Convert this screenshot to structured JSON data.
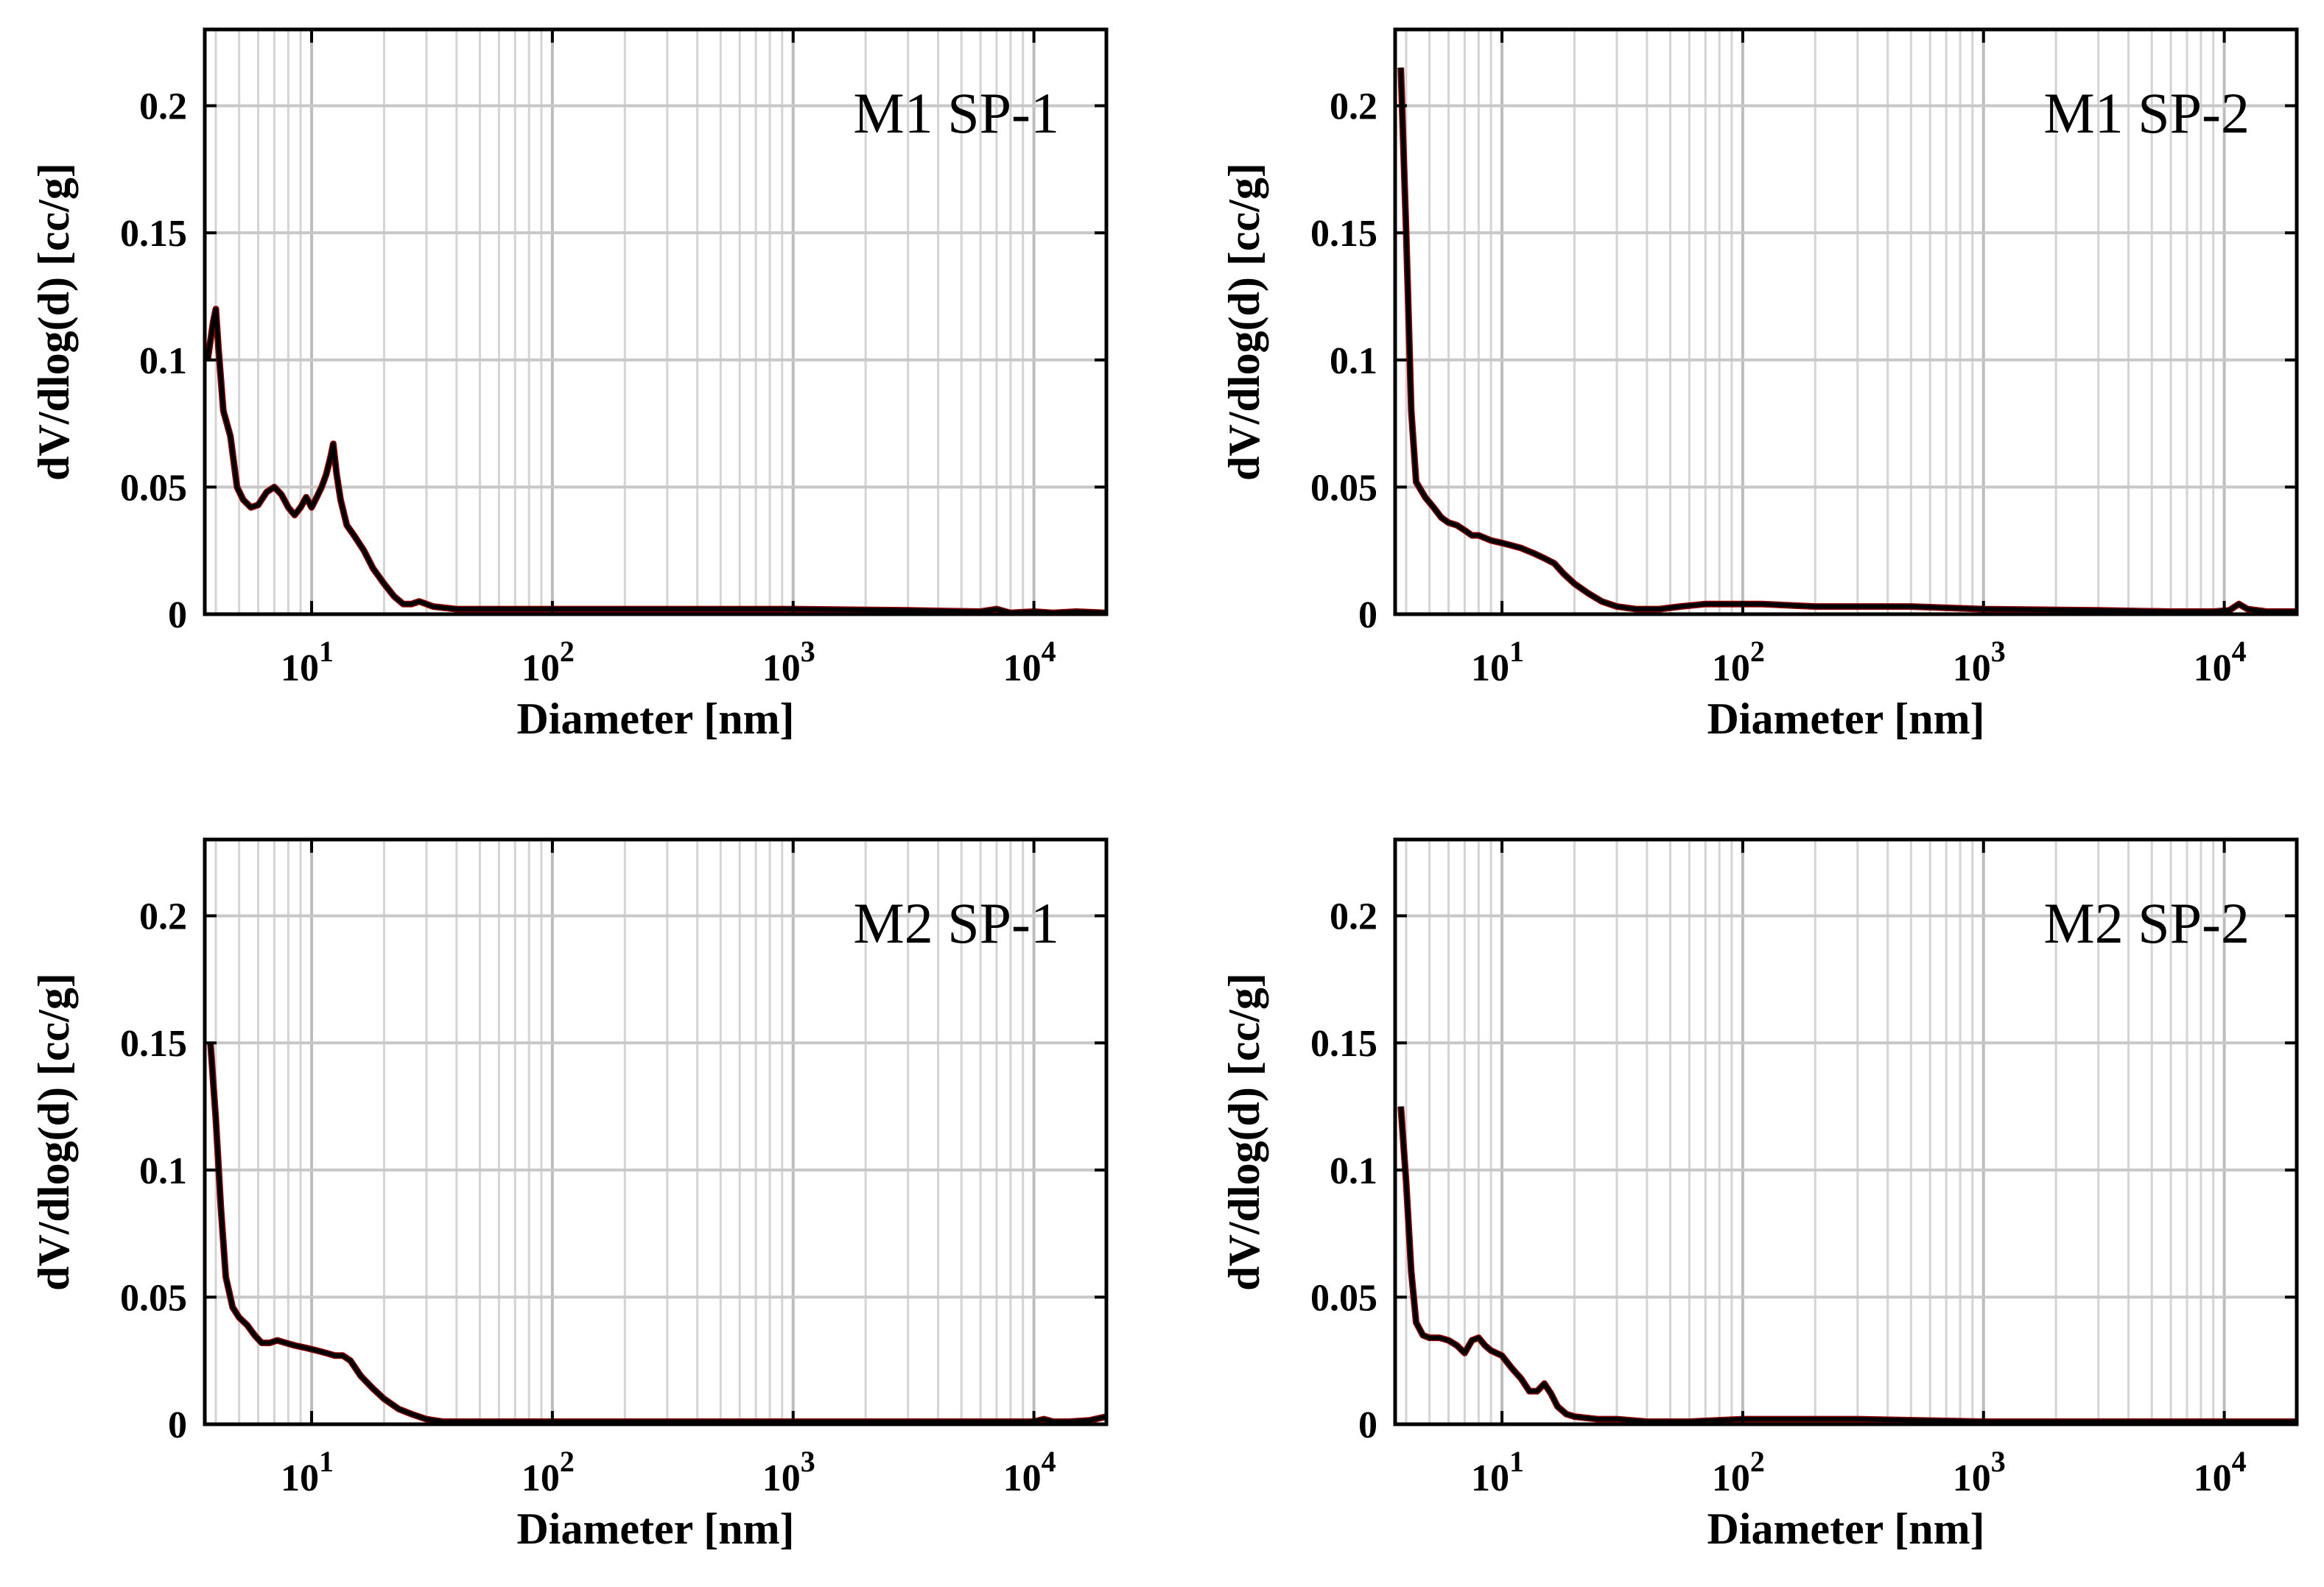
{
  "chart_data": [
    {
      "type": "line",
      "title": "M1 SP-1",
      "xlabel": "Diameter [nm]",
      "ylabel": "dV/dlog(d) [cc/g]",
      "xscale": "log",
      "xlim": [
        3.6,
        20000
      ],
      "ylim": [
        0,
        0.23
      ],
      "grid": true,
      "xticks": [
        10,
        100,
        1000,
        10000
      ],
      "xtick_labels": [
        [
          "10",
          "1"
        ],
        [
          "10",
          "2"
        ],
        [
          "10",
          "3"
        ],
        [
          "10",
          "4"
        ]
      ],
      "yticks": [
        0,
        0.05,
        0.1,
        0.15,
        0.2
      ],
      "ytick_labels": [
        "0",
        "0.05",
        "0.1",
        "0.15",
        "0.2"
      ],
      "series": [
        {
          "name": "M1 SP-1",
          "color": "#000000",
          "x": [
            3.7,
            3.9,
            4.0,
            4.1,
            4.3,
            4.6,
            4.9,
            5.2,
            5.6,
            6.0,
            6.5,
            7.0,
            7.5,
            8.0,
            8.5,
            9.0,
            9.5,
            10.0,
            10.5,
            11.0,
            11.5,
            12.0,
            12.3,
            12.7,
            13.2,
            14.0,
            15.0,
            16.5,
            18.0,
            20.0,
            22.0,
            24.0,
            26.0,
            28.0,
            32.0,
            40.0,
            60.0,
            100.0,
            300.0,
            1000.0,
            3000.0,
            6000.0,
            7000.0,
            8000.0,
            10000.0,
            12000.0,
            15000.0,
            20000.0
          ],
          "y": [
            0.1,
            0.115,
            0.12,
            0.105,
            0.08,
            0.07,
            0.05,
            0.045,
            0.042,
            0.043,
            0.048,
            0.05,
            0.047,
            0.042,
            0.039,
            0.042,
            0.046,
            0.042,
            0.046,
            0.05,
            0.055,
            0.062,
            0.067,
            0.055,
            0.045,
            0.035,
            0.031,
            0.025,
            0.018,
            0.012,
            0.007,
            0.004,
            0.004,
            0.005,
            0.003,
            0.002,
            0.002,
            0.002,
            0.002,
            0.002,
            0.0015,
            0.001,
            0.002,
            0.0005,
            0.001,
            0.0005,
            0.001,
            0.0005
          ]
        }
      ]
    },
    {
      "type": "line",
      "title": "M1 SP-2",
      "xlabel": "Diameter [nm]",
      "ylabel": "dV/dlog(d) [cc/g]",
      "xscale": "log",
      "xlim": [
        3.6,
        20000
      ],
      "ylim": [
        0,
        0.23
      ],
      "grid": true,
      "xticks": [
        10,
        100,
        1000,
        10000
      ],
      "xtick_labels": [
        [
          "10",
          "1"
        ],
        [
          "10",
          "2"
        ],
        [
          "10",
          "3"
        ],
        [
          "10",
          "4"
        ]
      ],
      "yticks": [
        0,
        0.05,
        0.1,
        0.15,
        0.2
      ],
      "ytick_labels": [
        "0",
        "0.05",
        "0.1",
        "0.15",
        "0.2"
      ],
      "series": [
        {
          "name": "M1 SP-2",
          "color": "#000000",
          "x": [
            3.8,
            4.0,
            4.2,
            4.4,
            4.8,
            5.2,
            5.6,
            6.0,
            6.5,
            7.0,
            7.5,
            8.0,
            9.0,
            10.0,
            11.0,
            12.0,
            13.5,
            15.0,
            16.5,
            18.0,
            20.0,
            23.0,
            26.0,
            30.0,
            36.0,
            45.0,
            55.0,
            70.0,
            90.0,
            120.0,
            200.0,
            500.0,
            1000.0,
            3000.0,
            6000.0,
            9000.0,
            10500.0,
            11500.0,
            12500.0,
            15000.0,
            20000.0
          ],
          "y": [
            0.215,
            0.15,
            0.08,
            0.052,
            0.046,
            0.042,
            0.038,
            0.036,
            0.035,
            0.033,
            0.031,
            0.031,
            0.029,
            0.028,
            0.027,
            0.026,
            0.024,
            0.022,
            0.02,
            0.016,
            0.012,
            0.008,
            0.005,
            0.003,
            0.002,
            0.002,
            0.003,
            0.004,
            0.004,
            0.004,
            0.003,
            0.003,
            0.002,
            0.0015,
            0.001,
            0.001,
            0.0015,
            0.004,
            0.002,
            0.001,
            0.001
          ]
        }
      ]
    },
    {
      "type": "line",
      "title": "M2 SP-1",
      "xlabel": "Diameter [nm]",
      "ylabel": "dV/dlog(d) [cc/g]",
      "xscale": "log",
      "xlim": [
        3.6,
        20000
      ],
      "ylim": [
        0,
        0.23
      ],
      "grid": true,
      "xticks": [
        10,
        100,
        1000,
        10000
      ],
      "xtick_labels": [
        [
          "10",
          "1"
        ],
        [
          "10",
          "2"
        ],
        [
          "10",
          "3"
        ],
        [
          "10",
          "4"
        ]
      ],
      "yticks": [
        0,
        0.05,
        0.1,
        0.15,
        0.2
      ],
      "ytick_labels": [
        "0",
        "0.05",
        "0.1",
        "0.15",
        "0.2"
      ],
      "series": [
        {
          "name": "M2 SP-1",
          "color": "#000000",
          "x": [
            3.8,
            4.0,
            4.2,
            4.4,
            4.7,
            5.0,
            5.4,
            5.8,
            6.2,
            6.7,
            7.2,
            7.8,
            8.5,
            9.5,
            10.5,
            11.5,
            12.5,
            13.5,
            14.5,
            16.0,
            18.0,
            20.0,
            23.0,
            26.0,
            30.0,
            35.0,
            45.0,
            100.0,
            1000.0,
            5000.0,
            10000.0,
            11000.0,
            12000.0,
            14000.0,
            17000.0,
            20000.0
          ],
          "y": [
            0.15,
            0.12,
            0.085,
            0.058,
            0.046,
            0.042,
            0.039,
            0.035,
            0.032,
            0.032,
            0.033,
            0.032,
            0.031,
            0.03,
            0.029,
            0.028,
            0.027,
            0.027,
            0.025,
            0.019,
            0.014,
            0.01,
            0.006,
            0.004,
            0.002,
            0.001,
            0.001,
            0.001,
            0.001,
            0.001,
            0.001,
            0.002,
            0.001,
            0.001,
            0.0015,
            0.003
          ]
        }
      ]
    },
    {
      "type": "line",
      "title": "M2 SP-2",
      "xlabel": "Diameter [nm]",
      "ylabel": "dV/dlog(d) [cc/g]",
      "xscale": "log",
      "xlim": [
        3.6,
        20000
      ],
      "ylim": [
        0,
        0.23
      ],
      "grid": true,
      "xticks": [
        10,
        100,
        1000,
        10000
      ],
      "xtick_labels": [
        [
          "10",
          "1"
        ],
        [
          "10",
          "2"
        ],
        [
          "10",
          "3"
        ],
        [
          "10",
          "4"
        ]
      ],
      "yticks": [
        0,
        0.05,
        0.1,
        0.15,
        0.2
      ],
      "ytick_labels": [
        "0",
        "0.05",
        "0.1",
        "0.15",
        "0.2"
      ],
      "series": [
        {
          "name": "M2 SP-2",
          "color": "#000000",
          "x": [
            3.8,
            4.0,
            4.2,
            4.4,
            4.7,
            5.0,
            5.5,
            6.0,
            6.5,
            7.0,
            7.5,
            8.0,
            8.5,
            9.0,
            10.0,
            11.0,
            12.0,
            13.0,
            14.0,
            15.0,
            16.0,
            17.0,
            18.5,
            20.0,
            25.0,
            30.0,
            40.0,
            60.0,
            100.0,
            300.0,
            1000.0,
            5000.0,
            20000.0
          ],
          "y": [
            0.125,
            0.095,
            0.06,
            0.04,
            0.035,
            0.034,
            0.034,
            0.033,
            0.031,
            0.028,
            0.033,
            0.034,
            0.031,
            0.029,
            0.027,
            0.022,
            0.018,
            0.013,
            0.013,
            0.016,
            0.012,
            0.007,
            0.004,
            0.003,
            0.002,
            0.002,
            0.001,
            0.001,
            0.002,
            0.002,
            0.001,
            0.001,
            0.001
          ]
        }
      ]
    }
  ]
}
